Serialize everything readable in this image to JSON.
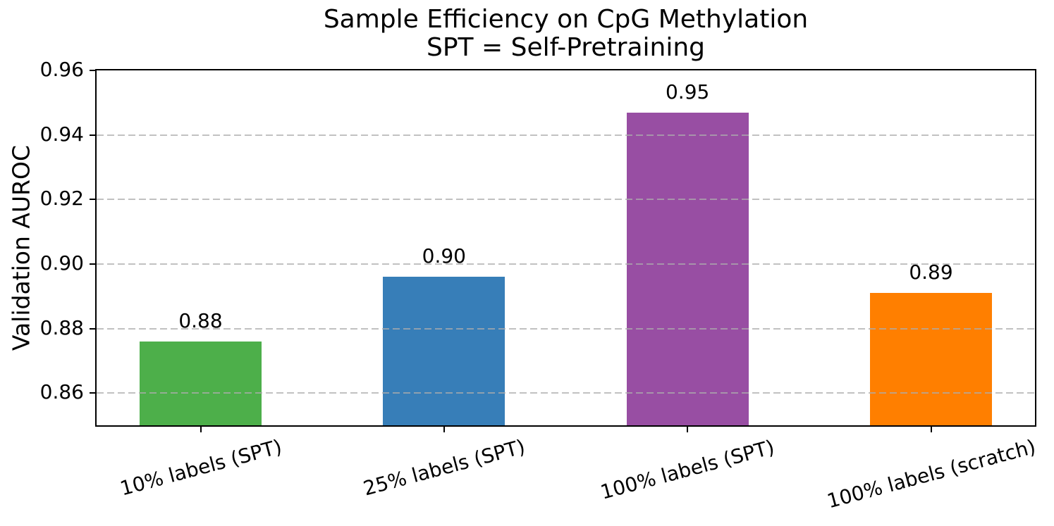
{
  "header": {
    "title_line1": "Sample Efficiency on CpG Methylation",
    "title_line2": "SPT = Self-Pretraining"
  },
  "chart_data": {
    "type": "bar",
    "title": "Sample Efficiency on CpG Methylation",
    "subtitle": "SPT = Self-Pretraining",
    "categories": [
      "10% labels (SPT)",
      "25% labels (SPT)",
      "100% labels (SPT)",
      "100% labels (scratch)"
    ],
    "values": [
      0.876,
      0.896,
      0.947,
      0.891
    ],
    "bar_value_labels": [
      "0.88",
      "0.90",
      "0.95",
      "0.89"
    ],
    "bar_colors": [
      "#4daf4a",
      "#377eb8",
      "#984ea3",
      "#ff7f00"
    ],
    "xlabel": "",
    "ylabel": "Validation AUROC",
    "ylim": [
      0.85,
      0.96
    ],
    "yticks": [
      0.86,
      0.88,
      0.9,
      0.92,
      0.94,
      0.96
    ],
    "ytick_labels": [
      "0.86",
      "0.88",
      "0.90",
      "0.92",
      "0.94",
      "0.96"
    ],
    "grid": "horizontal-dashed",
    "grid_over_bars": true,
    "legend_position": "none",
    "x_tick_label_rotation_deg": 15
  }
}
